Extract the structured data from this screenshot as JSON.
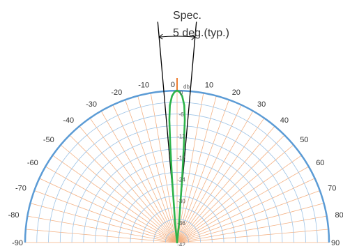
{
  "chart_data": {
    "type": "polar-line",
    "angle_unit": "deg",
    "angle_range": [
      -90,
      90
    ],
    "angle_ticks": [
      -90,
      -80,
      -70,
      -60,
      -50,
      -40,
      -30,
      -20,
      -10,
      0,
      10,
      20,
      30,
      40,
      50,
      60,
      70,
      80,
      90
    ],
    "radial_unit_label": "db",
    "radial_range": [
      -42,
      0
    ],
    "radial_ticks": [
      0,
      -6,
      -12,
      -18,
      -24,
      -30,
      -36,
      -42
    ],
    "radial_tick_labels": [
      "0",
      "-6",
      "-12",
      "-18",
      "-24",
      "-30",
      "-36",
      "-42"
    ],
    "grid": true,
    "series": [
      {
        "color": "#2db34a",
        "points": [
          [
            -90,
            -42
          ],
          [
            -10,
            -42
          ],
          [
            -6,
            -37
          ],
          [
            -5,
            -33
          ],
          [
            -4.5,
            -24
          ],
          [
            -4,
            -15
          ],
          [
            -3.6,
            -8
          ],
          [
            -3,
            -4
          ],
          [
            -2,
            -1.5
          ],
          [
            -1,
            -0.4
          ],
          [
            0,
            0
          ],
          [
            1,
            -0.4
          ],
          [
            2,
            -1.5
          ],
          [
            3,
            -4
          ],
          [
            3.6,
            -8
          ],
          [
            4,
            -15
          ],
          [
            4.5,
            -24
          ],
          [
            5,
            -33
          ],
          [
            6,
            -37
          ],
          [
            10,
            -42
          ],
          [
            90,
            -42
          ]
        ]
      }
    ],
    "annotations": {
      "spec_line1": "Spec.",
      "spec_line2": "5 deg.(typ.)",
      "spec_angle": 5
    },
    "colors": {
      "outer_arc": "#5b9bd5",
      "circle_grid": "#9dc3e6",
      "spoke_grid": "#f4b183",
      "spec_lines": "#000000",
      "center_mark": "#ed7d31"
    }
  }
}
